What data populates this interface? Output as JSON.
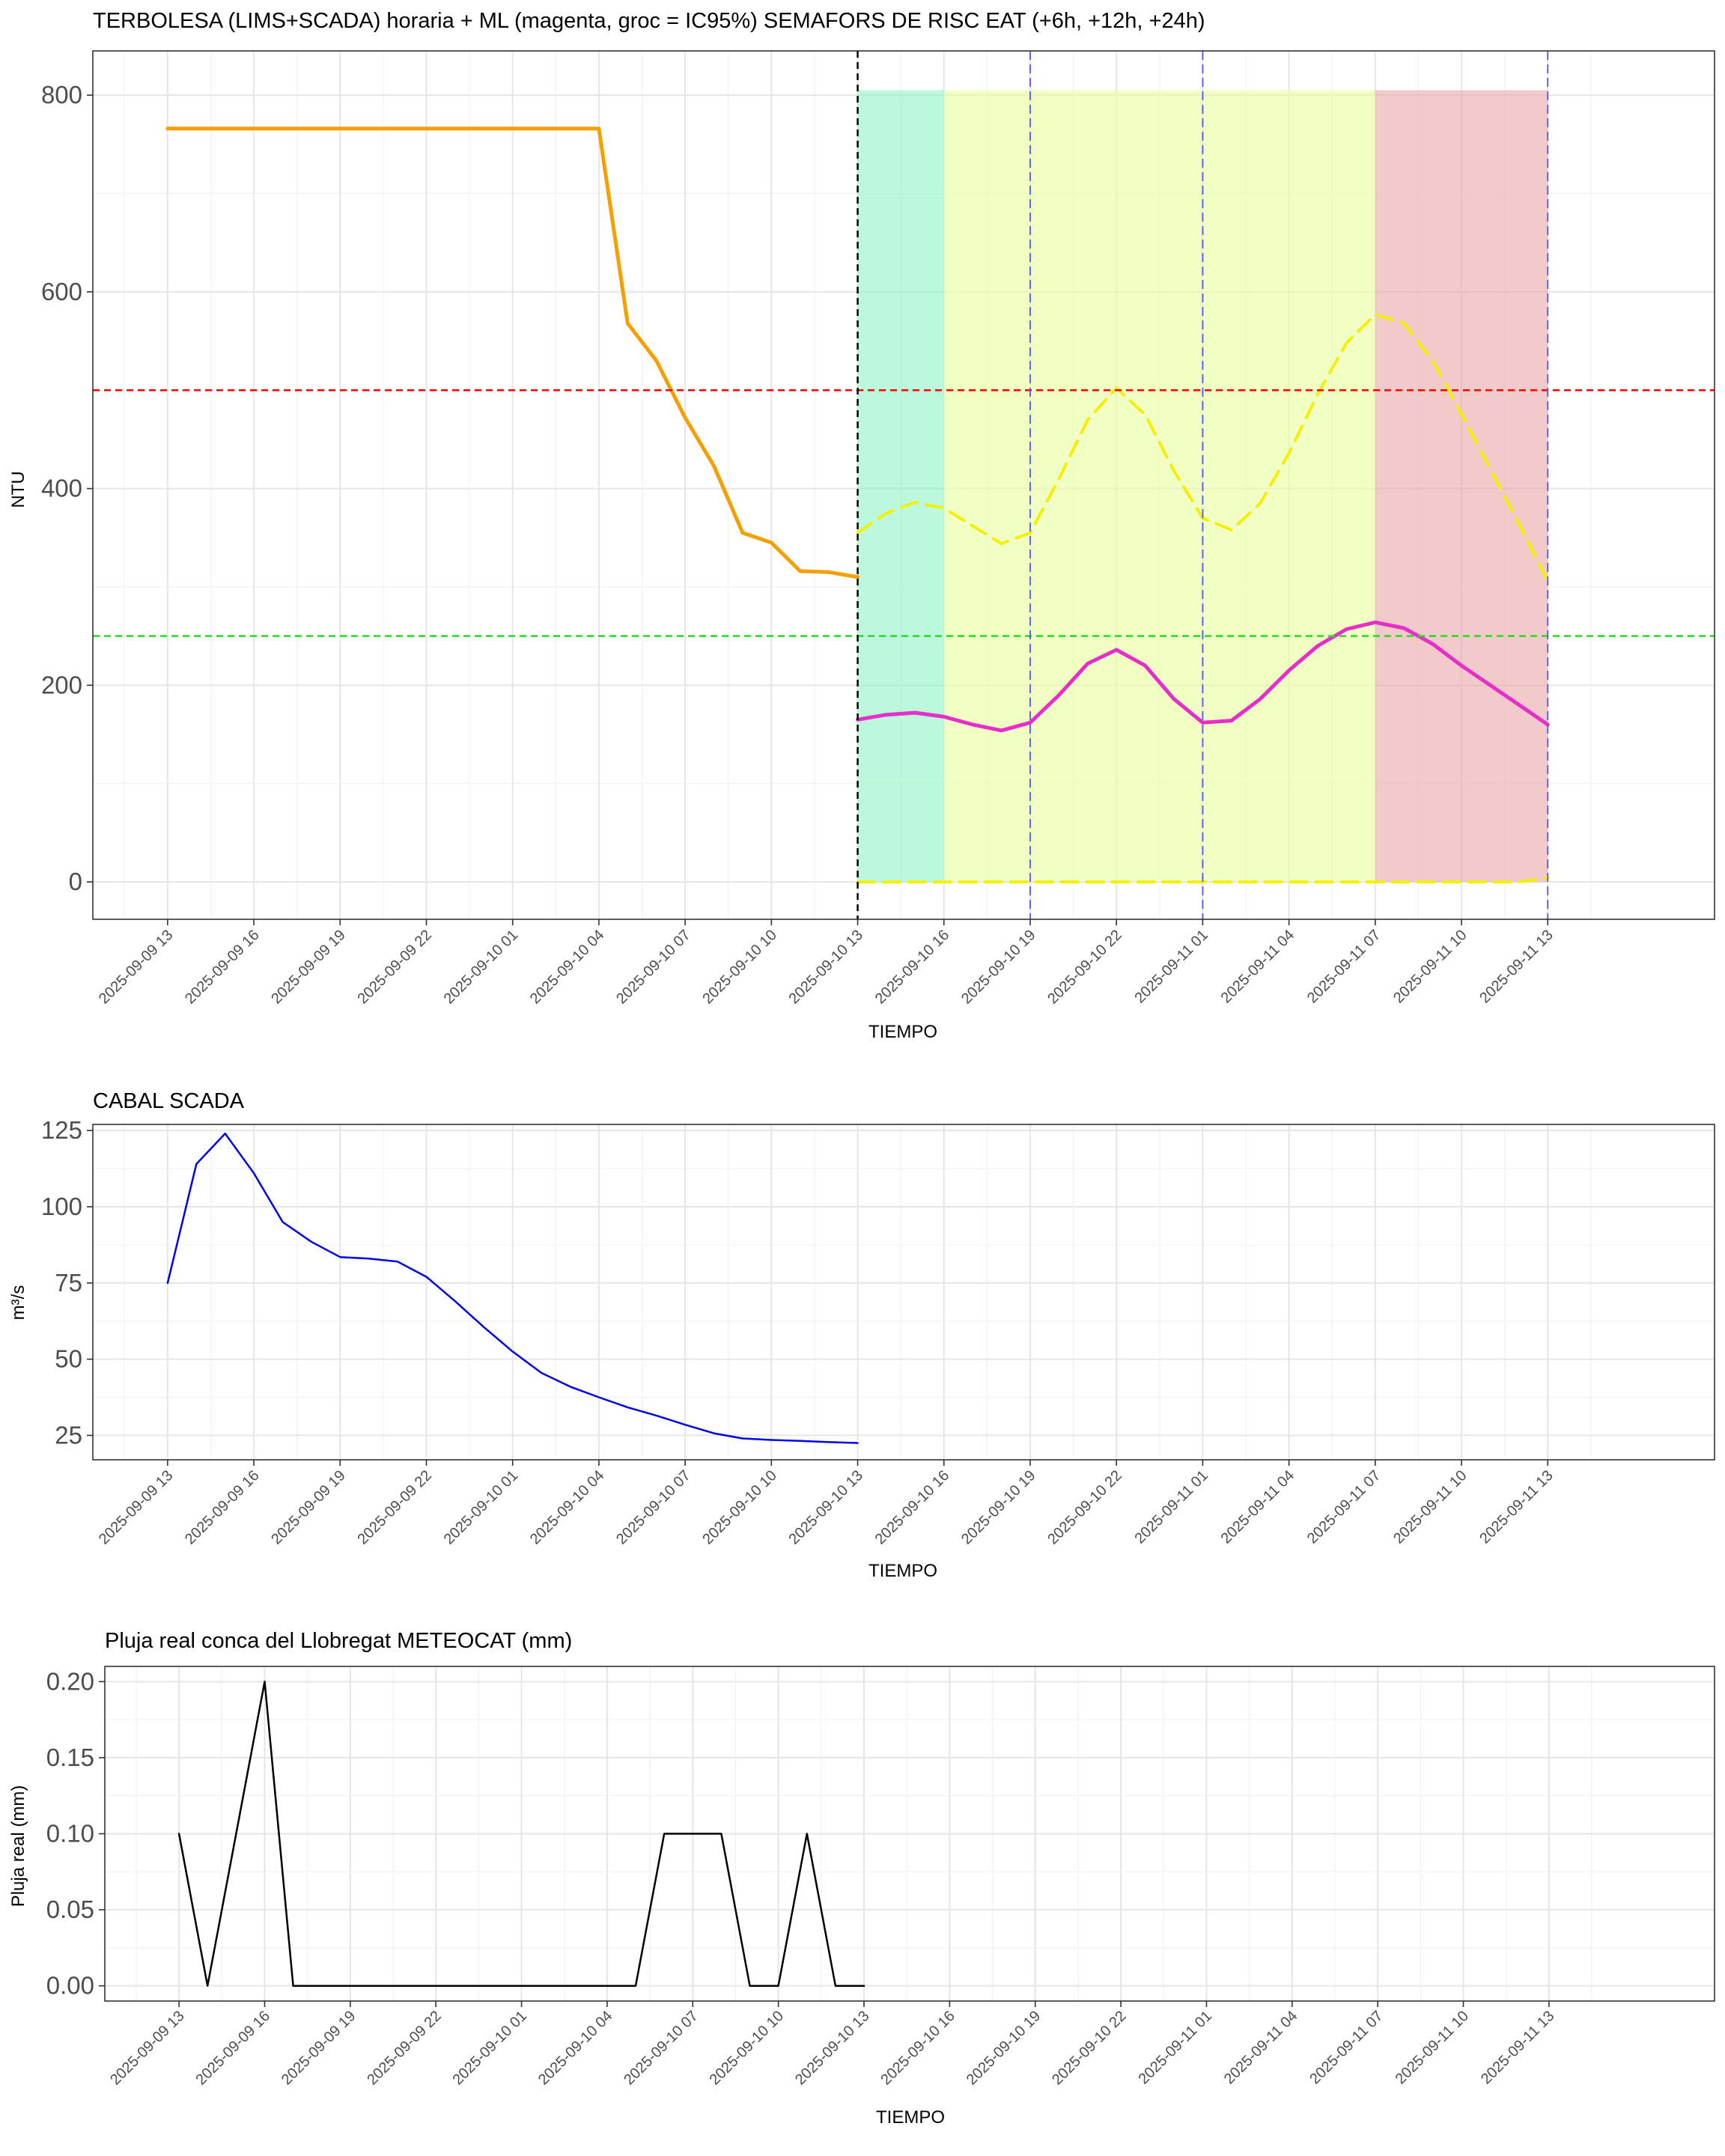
{
  "x_ticks": [
    "2025-09-09 13",
    "2025-09-09 16",
    "2025-09-09 19",
    "2025-09-09 22",
    "2025-09-10 01",
    "2025-09-10 04",
    "2025-09-10 07",
    "2025-09-10 10",
    "2025-09-10 13",
    "2025-09-10 16",
    "2025-09-10 19",
    "2025-09-10 22",
    "2025-09-11 01",
    "2025-09-11 04",
    "2025-09-11 07",
    "2025-09-11 10",
    "2025-09-11 13"
  ],
  "colors": {
    "observed": "#f5a000",
    "prediction": "#e62ec8",
    "ci95": "#f2f200",
    "threshold_high": "#ff0000",
    "threshold_low": "#22dd22",
    "horizon": "#5555ff",
    "now": "#000000",
    "risk_green": "#8ff5c4",
    "risk_yellow": "#e8ff9c",
    "risk_red": "#eba7a7",
    "flow": "#0000ee",
    "rain": "#000000"
  },
  "chart_data": [
    {
      "type": "line",
      "title": "TERBOLESA (LIMS+SCADA) horaria + ML (magenta, groc = IC95%) SEMAFORS DE RISC EAT (+6h, +12h, +24h)",
      "xlabel": "TIEMPO",
      "ylabel": "NTU",
      "x_range_hours": [
        -2.6,
        53.8
      ],
      "ylim": [
        -38,
        845
      ],
      "y_ticks": [
        0,
        200,
        400,
        600,
        800
      ],
      "grid": true,
      "now_hour": 24,
      "thresholds": [
        500,
        250
      ],
      "horizon_hours": [
        30,
        36,
        48
      ],
      "risk_bands": [
        {
          "from_hour": 24,
          "to_hour": 27,
          "level": "green",
          "ymax": 805
        },
        {
          "from_hour": 27,
          "to_hour": 42,
          "level": "yellow",
          "ymax": 805
        },
        {
          "from_hour": 42,
          "to_hour": 48,
          "level": "red",
          "ymax": 805
        }
      ],
      "series": [
        {
          "role": "observed",
          "x_hours": [
            0,
            1,
            2,
            3,
            4,
            5,
            6,
            7,
            8,
            9,
            10,
            11,
            12,
            13,
            14,
            15,
            16,
            17,
            18,
            19,
            20,
            21,
            22,
            23,
            24
          ],
          "values": [
            766,
            766,
            766,
            766,
            766,
            766,
            766,
            766,
            766,
            766,
            766,
            766,
            766,
            766,
            766,
            766,
            568,
            530,
            472,
            423,
            355,
            345,
            316,
            315,
            310
          ]
        },
        {
          "role": "prediction",
          "x_hours": [
            24,
            25,
            26,
            27,
            28,
            29,
            30,
            31,
            32,
            33,
            34,
            35,
            36,
            37,
            38,
            39,
            40,
            41,
            42,
            43,
            44,
            45,
            46,
            47,
            48
          ],
          "values": [
            165,
            170,
            172,
            168,
            160,
            154,
            162,
            190,
            222,
            236,
            220,
            186,
            162,
            164,
            186,
            215,
            240,
            257,
            264,
            258,
            242,
            220,
            200,
            180,
            160
          ]
        },
        {
          "role": "ci95_upper",
          "x_hours": [
            24,
            25,
            26,
            27,
            28,
            29,
            30,
            31,
            32,
            33,
            34,
            35,
            36,
            37,
            38,
            39,
            40,
            41,
            42,
            43,
            44,
            45,
            46,
            47,
            48
          ],
          "values": [
            355,
            375,
            386,
            380,
            362,
            344,
            355,
            410,
            470,
            502,
            475,
            418,
            370,
            358,
            385,
            436,
            496,
            548,
            577,
            568,
            530,
            476,
            420,
            364,
            306
          ]
        },
        {
          "role": "ci95_lower",
          "x_hours": [
            24,
            25,
            26,
            27,
            28,
            29,
            30,
            31,
            32,
            33,
            34,
            35,
            36,
            37,
            38,
            39,
            40,
            41,
            42,
            43,
            44,
            45,
            46,
            47,
            48
          ],
          "values": [
            0,
            0,
            0,
            0,
            0,
            0,
            0,
            0,
            0,
            0,
            0,
            0,
            0,
            0,
            0,
            0,
            0,
            0,
            0,
            0,
            0,
            0,
            0,
            0,
            4
          ]
        }
      ]
    },
    {
      "type": "line",
      "title": "CABAL SCADA",
      "xlabel": "TIEMPO",
      "ylabel": "m³/s",
      "x_range_hours": [
        -2.6,
        53.8
      ],
      "ylim": [
        17,
        127
      ],
      "y_ticks": [
        25,
        50,
        75,
        100,
        125
      ],
      "grid": true,
      "series": [
        {
          "role": "flow",
          "x_hours": [
            0,
            1,
            2,
            3,
            4,
            5,
            6,
            7,
            8,
            9,
            10,
            11,
            12,
            13,
            14,
            15,
            16,
            17,
            18,
            19,
            20,
            21,
            22,
            23,
            24
          ],
          "values": [
            75,
            114,
            124,
            111,
            95,
            88.5,
            83.5,
            83,
            82,
            77,
            69,
            60.5,
            52.5,
            45.5,
            41,
            37.5,
            34.2,
            31.5,
            28.5,
            25.7,
            24,
            23.5,
            23.2,
            22.8,
            22.5
          ]
        }
      ]
    },
    {
      "type": "line",
      "title": "Pluja real conca del Llobregat METEOCAT (mm)",
      "xlabel": "TIEMPO",
      "ylabel": "Pluja real (mm)",
      "x_range_hours": [
        -2.6,
        53.8
      ],
      "ylim": [
        -0.01,
        0.21
      ],
      "y_ticks": [
        0.0,
        0.05,
        0.1,
        0.15,
        0.2
      ],
      "grid": true,
      "series": [
        {
          "role": "rain",
          "x_hours": [
            0,
            1,
            2,
            3,
            4,
            5,
            6,
            7,
            8,
            9,
            10,
            11,
            12,
            13,
            14,
            15,
            16,
            17,
            18,
            19,
            20,
            21,
            22,
            23,
            24
          ],
          "values": [
            0.1,
            0,
            0.1,
            0.2,
            0,
            0,
            0,
            0,
            0,
            0,
            0,
            0,
            0,
            0,
            0,
            0,
            0,
            0.1,
            0.1,
            0.1,
            0,
            0,
            0.1,
            0,
            0
          ]
        }
      ]
    }
  ]
}
